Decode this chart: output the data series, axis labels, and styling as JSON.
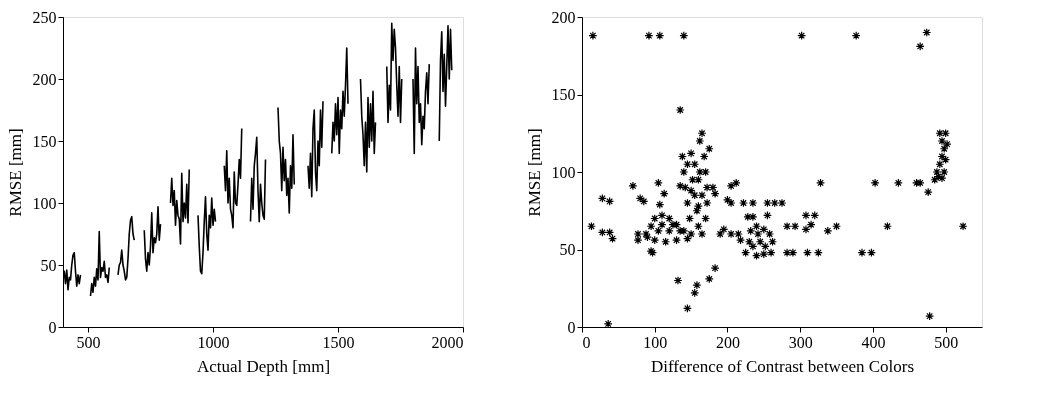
{
  "chart_data": [
    {
      "type": "line",
      "xlabel": "Actual Depth [mm]",
      "ylabel": "RMSE [mm]",
      "xlim": [
        400,
        2000
      ],
      "xticks": [
        500,
        1000,
        1500,
        2000
      ],
      "ylim": [
        0,
        250
      ],
      "yticks": [
        0,
        50,
        100,
        150,
        200,
        250
      ],
      "grid": false,
      "marker": "none",
      "line_style": "solid",
      "series": [
        {
          "color": "#000000",
          "x": [
            400,
            405,
            410,
            415,
            420,
            425,
            430,
            435,
            440,
            445,
            450,
            455,
            460,
            465,
            470,
            490,
            510,
            515,
            520,
            525,
            530,
            535,
            540,
            545,
            550,
            555,
            560,
            565,
            570,
            575,
            580,
            585,
            600,
            620,
            625,
            630,
            635,
            640,
            645,
            650,
            655,
            660,
            665,
            670,
            675,
            680,
            685,
            705,
            725,
            730,
            735,
            740,
            745,
            750,
            755,
            760,
            765,
            770,
            775,
            780,
            785,
            790,
            810,
            830,
            835,
            840,
            845,
            850,
            855,
            860,
            865,
            870,
            875,
            880,
            885,
            890,
            895,
            900,
            905,
            920,
            940,
            945,
            950,
            955,
            960,
            965,
            970,
            975,
            980,
            985,
            990,
            995,
            1000,
            1005,
            1010,
            1030,
            1045,
            1050,
            1055,
            1060,
            1065,
            1070,
            1075,
            1080,
            1085,
            1090,
            1095,
            1100,
            1105,
            1110,
            1115,
            1130,
            1150,
            1155,
            1160,
            1165,
            1170,
            1175,
            1180,
            1185,
            1190,
            1195,
            1200,
            1205,
            1210,
            1235,
            1260,
            1265,
            1270,
            1275,
            1280,
            1285,
            1290,
            1295,
            1300,
            1305,
            1310,
            1315,
            1320,
            1325,
            1350,
            1380,
            1385,
            1390,
            1395,
            1400,
            1405,
            1410,
            1415,
            1420,
            1425,
            1430,
            1435,
            1440,
            1460,
            1475,
            1480,
            1485,
            1490,
            1495,
            1500,
            1505,
            1510,
            1515,
            1520,
            1525,
            1530,
            1535,
            1540,
            1565,
            1590,
            1595,
            1600,
            1605,
            1610,
            1615,
            1620,
            1625,
            1630,
            1635,
            1640,
            1645,
            1650,
            1670,
            1695,
            1700,
            1705,
            1710,
            1715,
            1720,
            1725,
            1730,
            1735,
            1740,
            1745,
            1750,
            1755,
            1780,
            1800,
            1805,
            1810,
            1815,
            1820,
            1825,
            1830,
            1835,
            1840,
            1845,
            1850,
            1855,
            1860,
            1865,
            1885,
            1905,
            1910,
            1915,
            1920,
            1925,
            1930,
            1935,
            1940,
            1945,
            1950,
            1955
          ],
          "values": [
            40,
            45,
            35,
            46,
            30,
            40,
            38,
            50,
            58,
            60,
            45,
            33,
            42,
            35,
            42,
            null,
            25,
            35,
            28,
            40,
            33,
            47,
            38,
            77,
            40,
            48,
            45,
            53,
            40,
            42,
            36,
            48,
            null,
            42,
            50,
            52,
            62,
            50,
            45,
            38,
            40,
            55,
            75,
            86,
            89,
            75,
            70,
            null,
            78,
            55,
            45,
            60,
            50,
            65,
            92,
            60,
            72,
            68,
            75,
            97,
            70,
            83,
            null,
            100,
            120,
            98,
            110,
            82,
            102,
            90,
            87,
            67,
            124,
            85,
            100,
            88,
            115,
            84,
            127,
            null,
            90,
            65,
            45,
            43,
            60,
            85,
            105,
            75,
            62,
            90,
            80,
            104,
            82,
            95,
            85,
            null,
            130,
            110,
            142,
            100,
            120,
            95,
            90,
            80,
            125,
            100,
            98,
            115,
            135,
            120,
            160,
            null,
            85,
            120,
            95,
            130,
            140,
            153,
            110,
            85,
            115,
            100,
            90,
            87,
            135,
            null,
            177,
            150,
            140,
            110,
            145,
            118,
            135,
            106,
            120,
            92,
            130,
            112,
            155,
            115,
            null,
            130,
            112,
            140,
            105,
            160,
            175,
            125,
            110,
            150,
            130,
            175,
            145,
            182,
            null,
            140,
            165,
            150,
            180,
            155,
            185,
            140,
            175,
            160,
            190,
            170,
            195,
            225,
            180,
            null,
            200,
            170,
            155,
            130,
            165,
            125,
            185,
            145,
            180,
            150,
            190,
            140,
            165,
            null,
            210,
            165,
            195,
            175,
            245,
            215,
            240,
            225,
            195,
            170,
            210,
            165,
            200,
            null,
            200,
            140,
            225,
            180,
            210,
            165,
            180,
            147,
            170,
            160,
            190,
            205,
            180,
            212,
            null,
            150,
            215,
            238,
            190,
            220,
            178,
            210,
            243,
            200,
            240,
            207
          ]
        }
      ]
    },
    {
      "type": "scatter",
      "xlabel": "Difference of Contrast between Colors",
      "ylabel": "RMSE [mm]",
      "xlim": [
        0,
        550
      ],
      "xticks": [
        0,
        100,
        200,
        300,
        400,
        500
      ],
      "ylim": [
        0,
        200
      ],
      "yticks": [
        0,
        50,
        100,
        150,
        200
      ],
      "grid": false,
      "marker": "cross",
      "series": [
        {
          "color": "#000000",
          "x": [
            15,
            92,
            107,
            140,
            302,
            377,
            474,
            465,
            135,
            13,
            28,
            38,
            42,
            28,
            38,
            70,
            80,
            85,
            105,
            107,
            113,
            135,
            95,
            97,
            132,
            145,
            155,
            158,
            175,
            183,
            36,
            478,
            77,
            77,
            180,
            183,
            205,
            212,
            200,
            205,
            222,
            228,
            235,
            235,
            255,
            255,
            265,
            275,
            282,
            293,
            282,
            290,
            310,
            325,
            308,
            308,
            315,
            320,
            328,
            338,
            350,
            385,
            398,
            403,
            420,
            435,
            460,
            465,
            476,
            524,
            215,
            190,
            195,
            205,
            218,
            88,
            95,
            100,
            110,
            120,
            130,
            140,
            150,
            145,
            130,
            115,
            100,
            90,
            105,
            120,
            135,
            110,
            125,
            138,
            140,
            142,
            145,
            148,
            150,
            152,
            155,
            158,
            160,
            162,
            165,
            168,
            170,
            172,
            172,
            170,
            165,
            155,
            160,
            165,
            160,
            150,
            145,
            175,
            162,
            225,
            230,
            232,
            240,
            250,
            258,
            262,
            260,
            250,
            240,
            235,
            245,
            252,
            242,
            485,
            488,
            492,
            495,
            498,
            495,
            492,
            500,
            502,
            500,
            498,
            495,
            490
          ],
          "values": [
            188,
            188,
            188,
            188,
            188,
            188,
            190,
            181,
            140,
            65,
            61,
            61,
            57,
            83,
            81,
            91,
            83,
            81,
            93,
            79,
            86,
            91,
            49,
            48,
            30,
            12,
            22,
            27,
            31,
            38,
            2,
            7,
            56,
            60,
            90,
            86,
            91,
            93,
            82,
            80,
            80,
            71,
            80,
            71,
            72,
            80,
            80,
            80,
            65,
            65,
            48,
            48,
            48,
            48,
            72,
            63,
            66,
            72,
            93,
            62,
            65,
            48,
            48,
            93,
            65,
            93,
            93,
            93,
            87,
            65,
            60,
            60,
            63,
            60,
            56,
            60,
            65,
            70,
            72,
            70,
            66,
            62,
            60,
            57,
            56,
            55,
            56,
            58,
            62,
            62,
            62,
            66,
            66,
            110,
            100,
            90,
            80,
            70,
            112,
            95,
            85,
            75,
            65,
            120,
            125,
            110,
            100,
            90,
            80,
            70,
            60,
            105,
            95,
            85,
            78,
            88,
            105,
            115,
            100,
            48,
            55,
            62,
            65,
            63,
            60,
            55,
            48,
            47,
            46,
            52,
            55,
            52,
            60,
            95,
            100,
            105,
            110,
            115,
            120,
            125,
            125,
            118,
            108,
            100,
            96,
            97
          ]
        }
      ]
    }
  ]
}
